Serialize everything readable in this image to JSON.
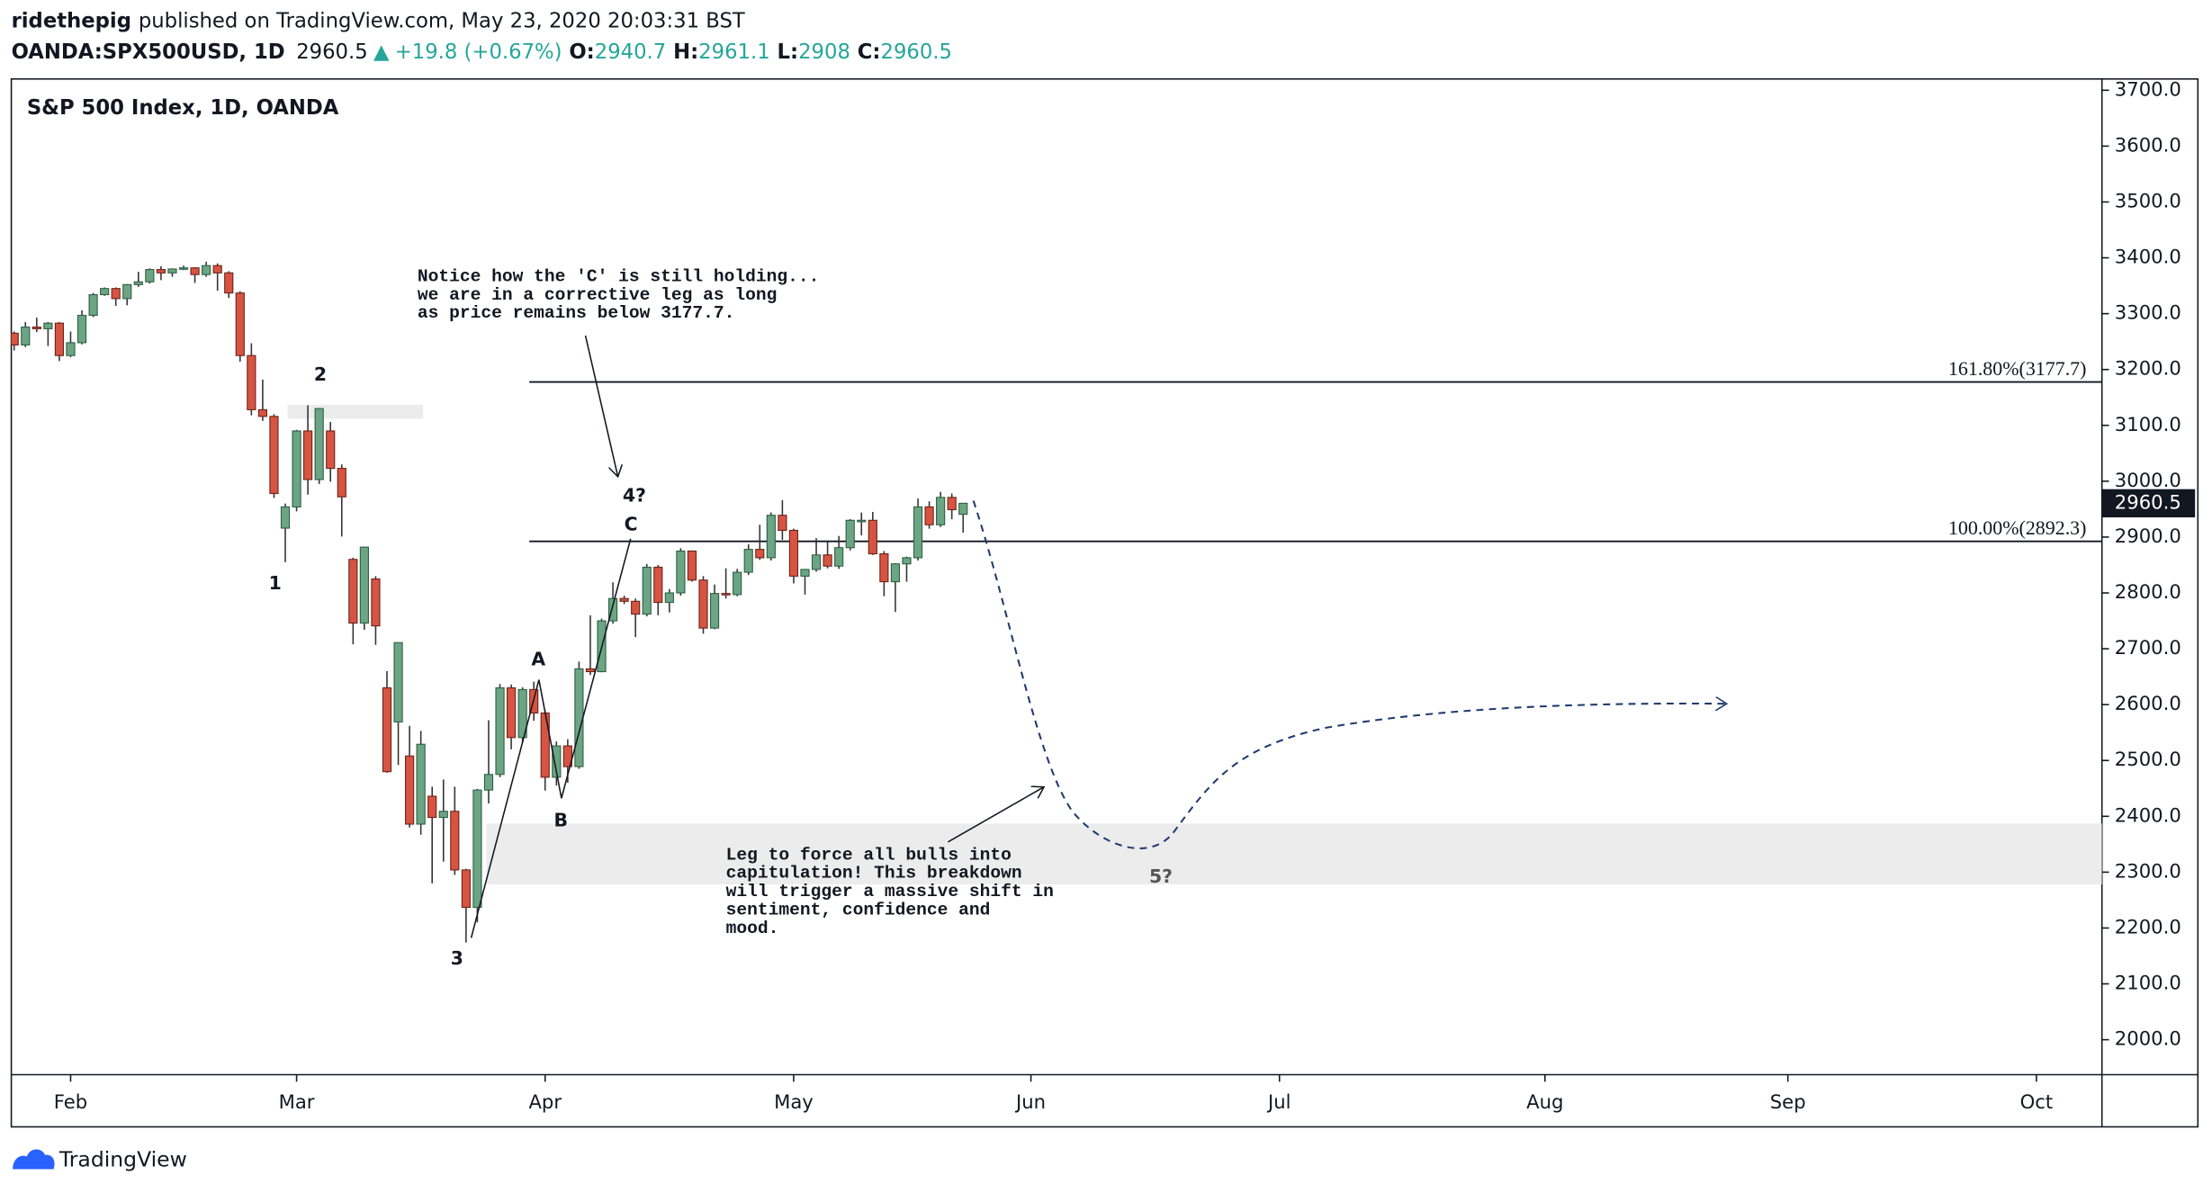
{
  "header": {
    "author": "ridethepig",
    "published": "published on TradingView.com, May 23, 2020 20:03:31 BST",
    "symbol": "OANDA:SPX500USD, 1D",
    "change": "+19.8 (+0.67%)",
    "ohlc_labels": [
      "O:",
      "H:",
      "L:",
      "C:"
    ]
  },
  "footer": {
    "brand": "TradingView"
  },
  "chart_data": {
    "type": "candlestick",
    "title": "S&P 500 Index, 1D, OANDA",
    "up_color": "#6ba583",
    "down_color": "#d75442",
    "open": [
      3265,
      3244,
      3276,
      3273,
      3283,
      3225,
      3248,
      3297,
      3334,
      3345,
      3327,
      3352,
      3357,
      3379,
      3373,
      3380,
      3382,
      3370,
      3386,
      3373,
      3337,
      3225,
      3128,
      3116,
      2916,
      2954,
      3090,
      3003,
      3090,
      3023,
      2860,
      2746,
      2825,
      2630,
      2569,
      2508,
      2386,
      2436,
      2398,
      2409,
      2304,
      2237,
      2447,
      2475,
      2630,
      2541,
      2627,
      2585,
      2470,
      2526,
      2489,
      2664,
      2659,
      2750,
      2790,
      2785,
      2762,
      2846,
      2783,
      2800,
      2875,
      2823,
      2737,
      2799,
      2797,
      2837,
      2878,
      2863,
      2939,
      2912,
      2830,
      2842,
      2868,
      2848,
      2881,
      2930,
      2930,
      2870,
      2820,
      2852,
      2863,
      2954,
      2922,
      2971,
      2940.7
    ],
    "high": [
      3268,
      3285,
      3293,
      3285,
      3285,
      3268,
      3306,
      3337,
      3347,
      3347,
      3353,
      3375,
      3381,
      3385,
      3381,
      3386,
      3383,
      3393,
      3390,
      3376,
      3340,
      3247,
      3182,
      3120,
      2960,
      3092,
      3136,
      3131,
      3106,
      3030,
      2863,
      2883,
      2830,
      2660,
      2711,
      2562,
      2553,
      2453,
      2466,
      2453,
      2306,
      2449,
      2572,
      2637,
      2636,
      2631,
      2641,
      2590,
      2534,
      2538,
      2677,
      2760,
      2754,
      2819,
      2795,
      2790,
      2852,
      2850,
      2807,
      2880,
      2876,
      2830,
      2815,
      2844,
      2843,
      2887,
      2922,
      2944,
      2966,
      2915,
      2843,
      2898,
      2891,
      2902,
      2932,
      2944,
      2945,
      2875,
      2853,
      2865,
      2969,
      2964,
      2981,
      2978,
      2961.1
    ],
    "low": [
      3234,
      3240,
      3267,
      3242,
      3215,
      3222,
      3245,
      3294,
      3332,
      3314,
      3315,
      3348,
      3354,
      3360,
      3366,
      3378,
      3355,
      3366,
      3341,
      3328,
      3214,
      3118,
      3108,
      2970,
      2855,
      2946,
      2976,
      2995,
      2999,
      2901,
      2708,
      2734,
      2707,
      2478,
      2492,
      2380,
      2367,
      2280,
      2319,
      2295,
      2174,
      2210,
      2423,
      2470,
      2520,
      2532,
      2571,
      2446,
      2455,
      2460,
      2485,
      2653,
      2658,
      2745,
      2780,
      2721,
      2758,
      2760,
      2765,
      2795,
      2820,
      2727,
      2735,
      2790,
      2794,
      2832,
      2859,
      2858,
      2895,
      2817,
      2797,
      2838,
      2844,
      2843,
      2876,
      2903,
      2868,
      2794,
      2766,
      2820,
      2858,
      2915,
      2918,
      2932,
      2908.0
    ],
    "close": [
      3244,
      3276,
      3273,
      3283,
      3225,
      3248,
      3297,
      3334,
      3345,
      3327,
      3352,
      3357,
      3379,
      3373,
      3380,
      3382,
      3370,
      3386,
      3373,
      3337,
      3225,
      3128,
      3116,
      2978,
      2954,
      3090,
      3003,
      3130,
      3023,
      2972,
      2746,
      2882,
      2741,
      2480,
      2711,
      2386,
      2529,
      2398,
      2409,
      2304,
      2237,
      2447,
      2475,
      2630,
      2541,
      2627,
      2585,
      2470,
      2526,
      2489,
      2664,
      2659,
      2750,
      2790,
      2785,
      2762,
      2846,
      2783,
      2800,
      2875,
      2823,
      2737,
      2799,
      2797,
      2837,
      2878,
      2863,
      2939,
      2912,
      2830,
      2842,
      2868,
      2848,
      2881,
      2930,
      2930,
      2870,
      2820,
      2852,
      2863,
      2954,
      2922,
      2971,
      2949,
      2960.5
    ],
    "xlim": [
      -0.25,
      184.8
    ],
    "xticks": [
      {
        "value": 5,
        "label": "Feb"
      },
      {
        "value": 25,
        "label": "Mar"
      },
      {
        "value": 47,
        "label": "Apr"
      },
      {
        "value": 69,
        "label": "May"
      },
      {
        "value": 90,
        "label": "Jun"
      },
      {
        "value": 112,
        "label": "Jul"
      },
      {
        "value": 135.5,
        "label": "Aug"
      },
      {
        "value": 157,
        "label": "Sep"
      },
      {
        "value": 179,
        "label": "Oct"
      }
    ],
    "ylim": [
      1937.4,
      3720.2
    ],
    "yticks": [
      {
        "value": 2000,
        "label": "2000.0"
      },
      {
        "value": 2100,
        "label": "2100.0"
      },
      {
        "value": 2200,
        "label": "2200.0"
      },
      {
        "value": 2300,
        "label": "2300.0"
      },
      {
        "value": 2400,
        "label": "2400.0"
      },
      {
        "value": 2500,
        "label": "2500.0"
      },
      {
        "value": 2600,
        "label": "2600.0"
      },
      {
        "value": 2700,
        "label": "2700.0"
      },
      {
        "value": 2800,
        "label": "2800.0"
      },
      {
        "value": 2900,
        "label": "2900.0"
      },
      {
        "value": 3000,
        "label": "3000.0"
      },
      {
        "value": 3100,
        "label": "3100.0"
      },
      {
        "value": 3200,
        "label": "3200.0"
      },
      {
        "value": 3300,
        "label": "3300.0"
      },
      {
        "value": 3400,
        "label": "3400.0"
      },
      {
        "value": 3500,
        "label": "3500.0"
      },
      {
        "value": 3600,
        "label": "3600.0"
      },
      {
        "value": 3700,
        "label": "3700.0"
      }
    ],
    "levels": [
      {
        "value": 3177.7,
        "label": "161.80%(3177.7)",
        "start": 45.6
      },
      {
        "value": 2892.3,
        "label": "100.00%(2892.3)",
        "start": 45.6
      }
    ],
    "zones": [
      {
        "x": [
          24.2,
          36.2
        ],
        "y": [
          3112,
          3137
        ]
      },
      {
        "x": [
          41.8,
          184.8
        ],
        "y": [
          2278,
          2387
        ]
      }
    ],
    "annotations": [
      {
        "text": "1",
        "x": 23.1,
        "y": 2816
      },
      {
        "text": "2",
        "x": 27.1,
        "y": 3190
      },
      {
        "text": "3",
        "x": 39.2,
        "y": 2144
      },
      {
        "text": "A",
        "x": 46.4,
        "y": 2680
      },
      {
        "text": "B",
        "x": 48.4,
        "y": 2392
      },
      {
        "text": "C",
        "x": 54.6,
        "y": 2922
      },
      {
        "text": "4?",
        "x": 54.9,
        "y": 2973
      },
      {
        "text": "5?",
        "x": 101.5,
        "y": 2291
      }
    ],
    "notes": [
      {
        "x": 35.7,
        "y": 3366.7,
        "lines": [
          "Notice how the 'C' is still holding...",
          "we are in a corrective leg as long",
          "as price remains below 3177.7."
        ]
      },
      {
        "x": 63.0,
        "y": 2331,
        "lines": [
          "Leg to force all bulls into",
          "capitulation! This breakdown",
          "will trigger a massive shift in",
          "sentiment, confidence and",
          "mood."
        ]
      }
    ]
  }
}
